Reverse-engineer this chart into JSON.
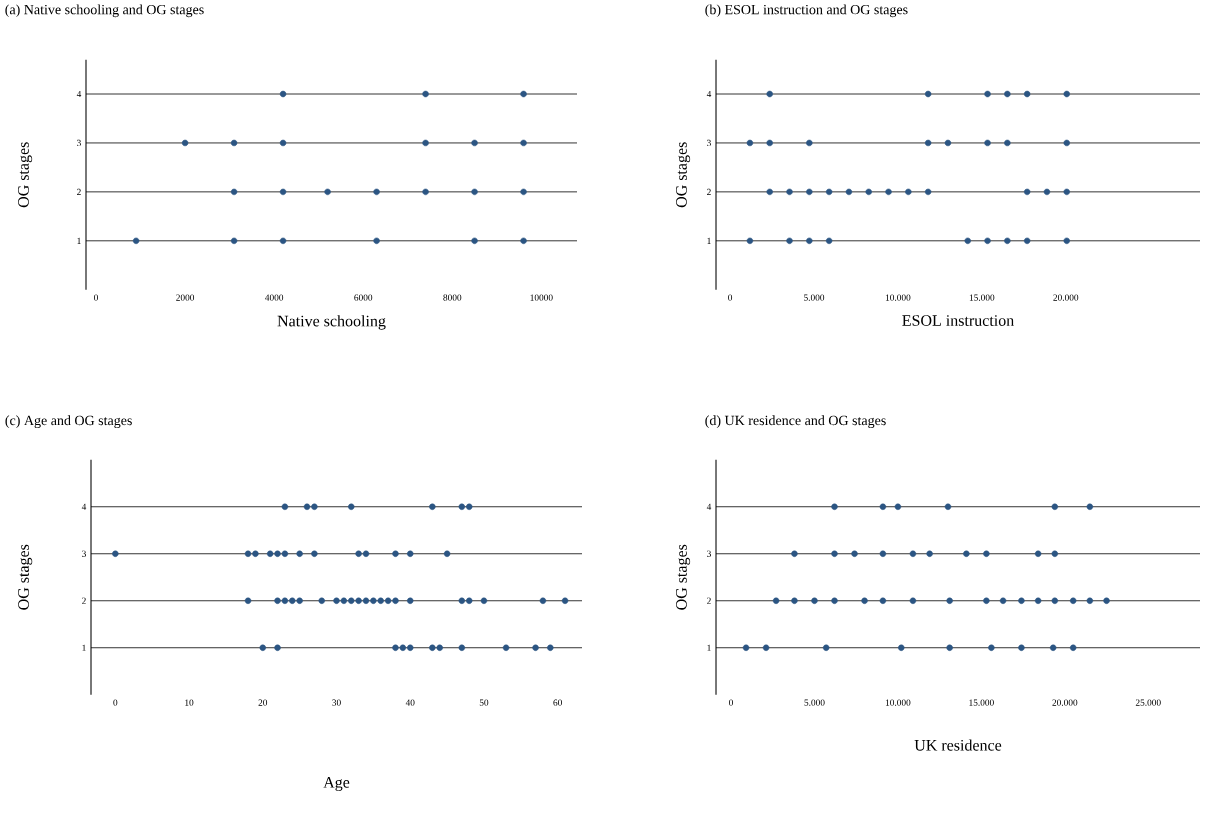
{
  "chart_data": [
    {
      "type": "scatter",
      "title": "(a) Native schooling and OG stages",
      "xlabel": "Native schooling",
      "ylabel": "OG stages",
      "xlim": [
        -225,
        10800
      ],
      "ylim": [
        0,
        4.7
      ],
      "xticks": [
        0,
        2000,
        4000,
        6000,
        8000,
        10000
      ],
      "yticks": [
        1,
        2,
        3,
        4
      ],
      "grid": "y",
      "marker": "circle",
      "series": [
        {
          "color": "#2b5583",
          "x": [
            900,
            3100,
            4200,
            6300,
            8500,
            9600,
            3100,
            4200,
            5200,
            6300,
            7400,
            8500,
            9600,
            2000,
            3100,
            4200,
            7400,
            8500,
            9600,
            4200,
            7400,
            9600
          ],
          "values": [
            1,
            1,
            1,
            1,
            1,
            1,
            2,
            2,
            2,
            2,
            2,
            2,
            2,
            3,
            3,
            3,
            3,
            3,
            3,
            4,
            4,
            4
          ]
        }
      ]
    },
    {
      "type": "scatter",
      "title": "(b) ESOL instruction and OG stages",
      "xlabel": "ESOL instruction",
      "ylabel": "OG stages",
      "xlim": [
        -840,
        28000
      ],
      "ylim": [
        0,
        4.7
      ],
      "xticks": [
        0,
        {
          "value": 5000,
          "label": "5.000"
        },
        {
          "value": 10000,
          "label": "10.000"
        },
        {
          "value": 15000,
          "label": "15.000"
        },
        {
          "value": 20000,
          "label": "20.000"
        }
      ],
      "yticks": [
        1,
        2,
        3,
        4
      ],
      "grid": "y",
      "marker": "circle",
      "series": [
        {
          "color": "#2b5583",
          "x": [
            1180,
            3540,
            4720,
            5900,
            14160,
            15340,
            16520,
            17700,
            20060,
            2360,
            3540,
            4720,
            5900,
            7080,
            8260,
            9440,
            10620,
            11800,
            17700,
            18880,
            20060,
            1180,
            2360,
            4720,
            11800,
            12980,
            15340,
            16520,
            20060,
            2360,
            11800,
            15340,
            16520,
            17700,
            20060
          ],
          "values": [
            1,
            1,
            1,
            1,
            1,
            1,
            1,
            1,
            1,
            2,
            2,
            2,
            2,
            2,
            2,
            2,
            2,
            2,
            2,
            2,
            2,
            3,
            3,
            3,
            3,
            3,
            3,
            3,
            3,
            4,
            4,
            4,
            4,
            4,
            4
          ]
        }
      ]
    },
    {
      "type": "scatter",
      "title": "(c) Age and OG stages",
      "xlabel": "Age",
      "ylabel": "OG stages",
      "xlim": [
        -3.3,
        63.3
      ],
      "ylim": [
        0,
        5
      ],
      "xticks": [
        0,
        10,
        20,
        30,
        40,
        50,
        60
      ],
      "yticks": [
        1,
        2,
        3,
        4
      ],
      "grid": "y",
      "marker": "circle",
      "series": [
        {
          "color": "#2b5583",
          "x": [
            20,
            22,
            38,
            39,
            40,
            43,
            44,
            47,
            53,
            57,
            59,
            18,
            22,
            23,
            24,
            25,
            28,
            30,
            31,
            32,
            33,
            34,
            35,
            36,
            37,
            38,
            40,
            47,
            48,
            50,
            58,
            61,
            0,
            18,
            19,
            21,
            22,
            23,
            25,
            27,
            33,
            34,
            38,
            40,
            45,
            23,
            26,
            27,
            32,
            43,
            47,
            48
          ],
          "values": [
            1,
            1,
            1,
            1,
            1,
            1,
            1,
            1,
            1,
            1,
            1,
            2,
            2,
            2,
            2,
            2,
            2,
            2,
            2,
            2,
            2,
            2,
            2,
            2,
            2,
            2,
            2,
            2,
            2,
            2,
            2,
            2,
            3,
            3,
            3,
            3,
            3,
            3,
            3,
            3,
            3,
            3,
            3,
            3,
            3,
            4,
            4,
            4,
            4,
            4,
            4,
            4
          ]
        }
      ]
    },
    {
      "type": "scatter",
      "title": "(d) UK residence and OG stages",
      "xlabel": "UK residence",
      "ylabel": "OG stages",
      "xlim": [
        -900,
        28100
      ],
      "ylim": [
        0,
        5
      ],
      "xticks": [
        0,
        {
          "value": 5000,
          "label": "5.000"
        },
        {
          "value": 10000,
          "label": "10.000"
        },
        {
          "value": 15000,
          "label": "15.000"
        },
        {
          "value": 20000,
          "label": "20.000"
        },
        {
          "value": 25000,
          "label": "25.000"
        }
      ],
      "yticks": [
        1,
        2,
        3,
        4
      ],
      "grid": "y",
      "marker": "circle",
      "series": [
        {
          "color": "#2b5583",
          "x": [
            900,
            2100,
            5700,
            10200,
            13100,
            15600,
            17400,
            19300,
            20500,
            2700,
            3800,
            5000,
            6200,
            8000,
            9100,
            10900,
            13100,
            15300,
            16300,
            17400,
            18400,
            19400,
            20500,
            21500,
            22500,
            3800,
            6200,
            7400,
            9100,
            10900,
            11900,
            14100,
            15300,
            18400,
            19400,
            6200,
            9100,
            10000,
            13000,
            19400,
            21500
          ],
          "values": [
            1,
            1,
            1,
            1,
            1,
            1,
            1,
            1,
            1,
            2,
            2,
            2,
            2,
            2,
            2,
            2,
            2,
            2,
            2,
            2,
            2,
            2,
            2,
            2,
            2,
            3,
            3,
            3,
            3,
            3,
            3,
            3,
            3,
            3,
            3,
            4,
            4,
            4,
            4,
            4,
            4
          ]
        }
      ]
    }
  ]
}
